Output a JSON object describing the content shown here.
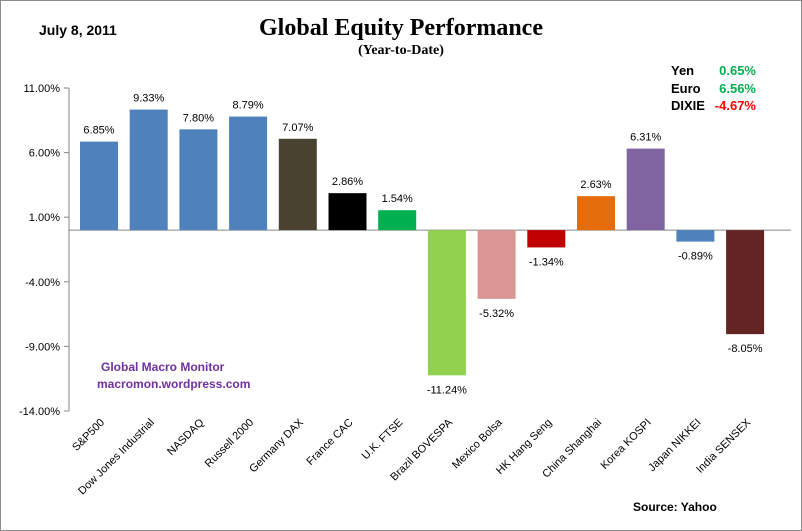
{
  "chart_data": {
    "type": "bar",
    "title": "Global Equity Performance",
    "subtitle": "(Year-to-Date)",
    "date": "July 8,  2011",
    "xlabel": "",
    "ylabel": "",
    "ylim": [
      -14,
      11
    ],
    "yticks": [
      11,
      6,
      1,
      -4,
      -9,
      -14
    ],
    "ytick_labels": [
      "11.00%",
      "6.00%",
      "1.00%",
      "-4.00%",
      "-9.00%",
      "-14.00%"
    ],
    "categories": [
      "S&P500",
      "Dow Jones Industrial",
      "NASDAQ",
      "Russell 2000",
      "Germany DAX",
      "France CAC",
      "U.K. FTSE",
      "Brazil BOVESPA",
      "Mexico Bolsa",
      "HK Hang Seng",
      "China Shanghai",
      "Korea KOSPI",
      "Japan NIKKEI",
      "India SENSEX"
    ],
    "values": [
      6.85,
      9.33,
      7.8,
      8.79,
      7.07,
      2.86,
      1.54,
      -11.24,
      -5.32,
      -1.34,
      2.63,
      6.31,
      -0.89,
      -8.05
    ],
    "value_labels": [
      "6.85%",
      "9.33%",
      "7.80%",
      "8.79%",
      "7.07%",
      "2.86%",
      "1.54%",
      "-11.24%",
      "-5.32%",
      "-1.34%",
      "2.63%",
      "6.31%",
      "-0.89%",
      "-8.05%"
    ],
    "colors": [
      "#4f81bd",
      "#4f81bd",
      "#4f81bd",
      "#4f81bd",
      "#4a4230",
      "#000000",
      "#00b050",
      "#92d050",
      "#d99694",
      "#c00000",
      "#e46c0a",
      "#8064a2",
      "#4f81bd",
      "#632523"
    ],
    "grid": false,
    "currencies": [
      {
        "name": "Yen",
        "value": "0.65%",
        "color": "#00b050"
      },
      {
        "name": "Euro",
        "value": "6.56%",
        "color": "#00b050"
      },
      {
        "name": "DIXIE",
        "value": "-4.67%",
        "color": "#ff0000"
      }
    ],
    "watermark": [
      "Global  Macro  Monitor",
      "macromon.wordpress.com"
    ],
    "source": "Source:   Yahoo"
  }
}
